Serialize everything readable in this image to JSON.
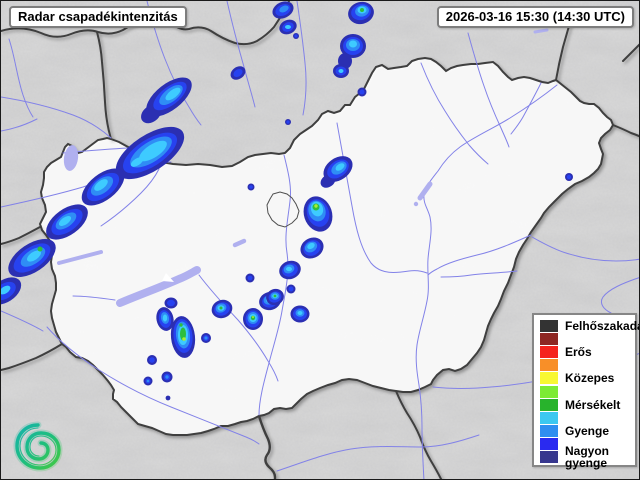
{
  "header": {
    "title": "Radar csapadékintenzitás",
    "timestamp": "2026-03-16 15:30 (14:30 UTC)"
  },
  "legend": {
    "items": [
      {
        "label": "Felhőszakadás",
        "color": "#333333"
      },
      {
        "label": "",
        "color": "#8e2723"
      },
      {
        "label": "Erős",
        "color": "#f5231d"
      },
      {
        "label": "",
        "color": "#f88f28"
      },
      {
        "label": "Közepes",
        "color": "#f8f832"
      },
      {
        "label": "",
        "color": "#7ceb35"
      },
      {
        "label": "Mérsékelt",
        "color": "#28b32c"
      },
      {
        "label": "",
        "color": "#3cc8f0"
      },
      {
        "label": "Gyenge",
        "color": "#2f8ef0"
      },
      {
        "label": "",
        "color": "#2a2af0"
      },
      {
        "label": "Nagyon gyenge",
        "color": "#37378e"
      }
    ]
  },
  "radar_palette": {
    "navy": "#2b2fb2",
    "blue": "#2742f0",
    "dodger": "#2f8df5",
    "cyan": "#3ecbff",
    "green": "#2dbf3e",
    "chartreuse": "#aaee33"
  },
  "map_colors": {
    "background": "#dadada",
    "land": "#ffffff",
    "border": "#3f3f3f",
    "river": "#8282e8",
    "lake": "#b0b0ef"
  },
  "icons": {
    "logo": "teal-green spiral (meteorological service logo)"
  }
}
